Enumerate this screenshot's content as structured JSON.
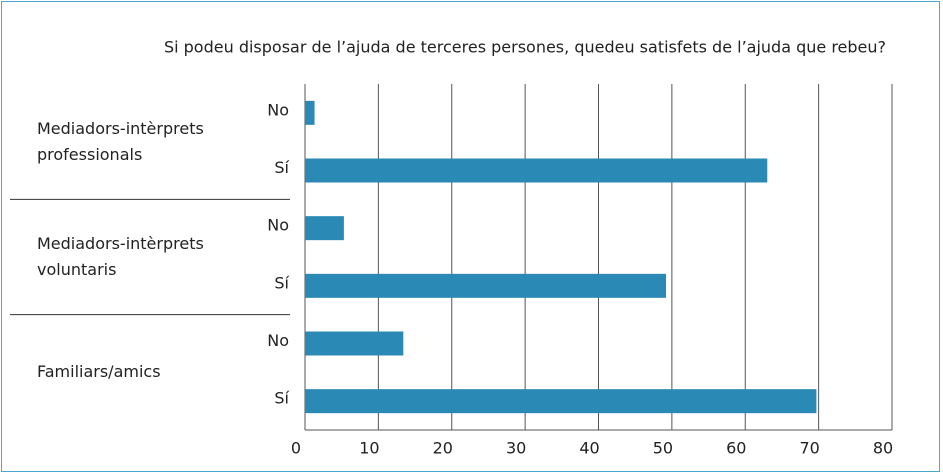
{
  "chart_data": {
    "type": "bar",
    "orientation": "horizontal",
    "title": "Si podeu disposar de l’ajuda de terceres persones, quedeu satisfets de l’ajuda que rebeu?",
    "groups": [
      {
        "name": "Mediadors-intèrprets professionals",
        "categories": [
          "No",
          "Sí"
        ],
        "values": [
          1.3,
          63
        ]
      },
      {
        "name": "Mediadors-intèrprets voluntaris",
        "categories": [
          "No",
          "Sí"
        ],
        "values": [
          5.3,
          49.2
        ]
      },
      {
        "name": "Familiars/amics",
        "categories": [
          "No",
          "Sí"
        ],
        "values": [
          13.4,
          69.7
        ]
      }
    ],
    "color": "#2a8ab5",
    "xlim": [
      0,
      80
    ],
    "xticks": [
      0,
      10,
      20,
      30,
      40,
      50,
      60,
      70,
      80
    ],
    "grid": true
  }
}
